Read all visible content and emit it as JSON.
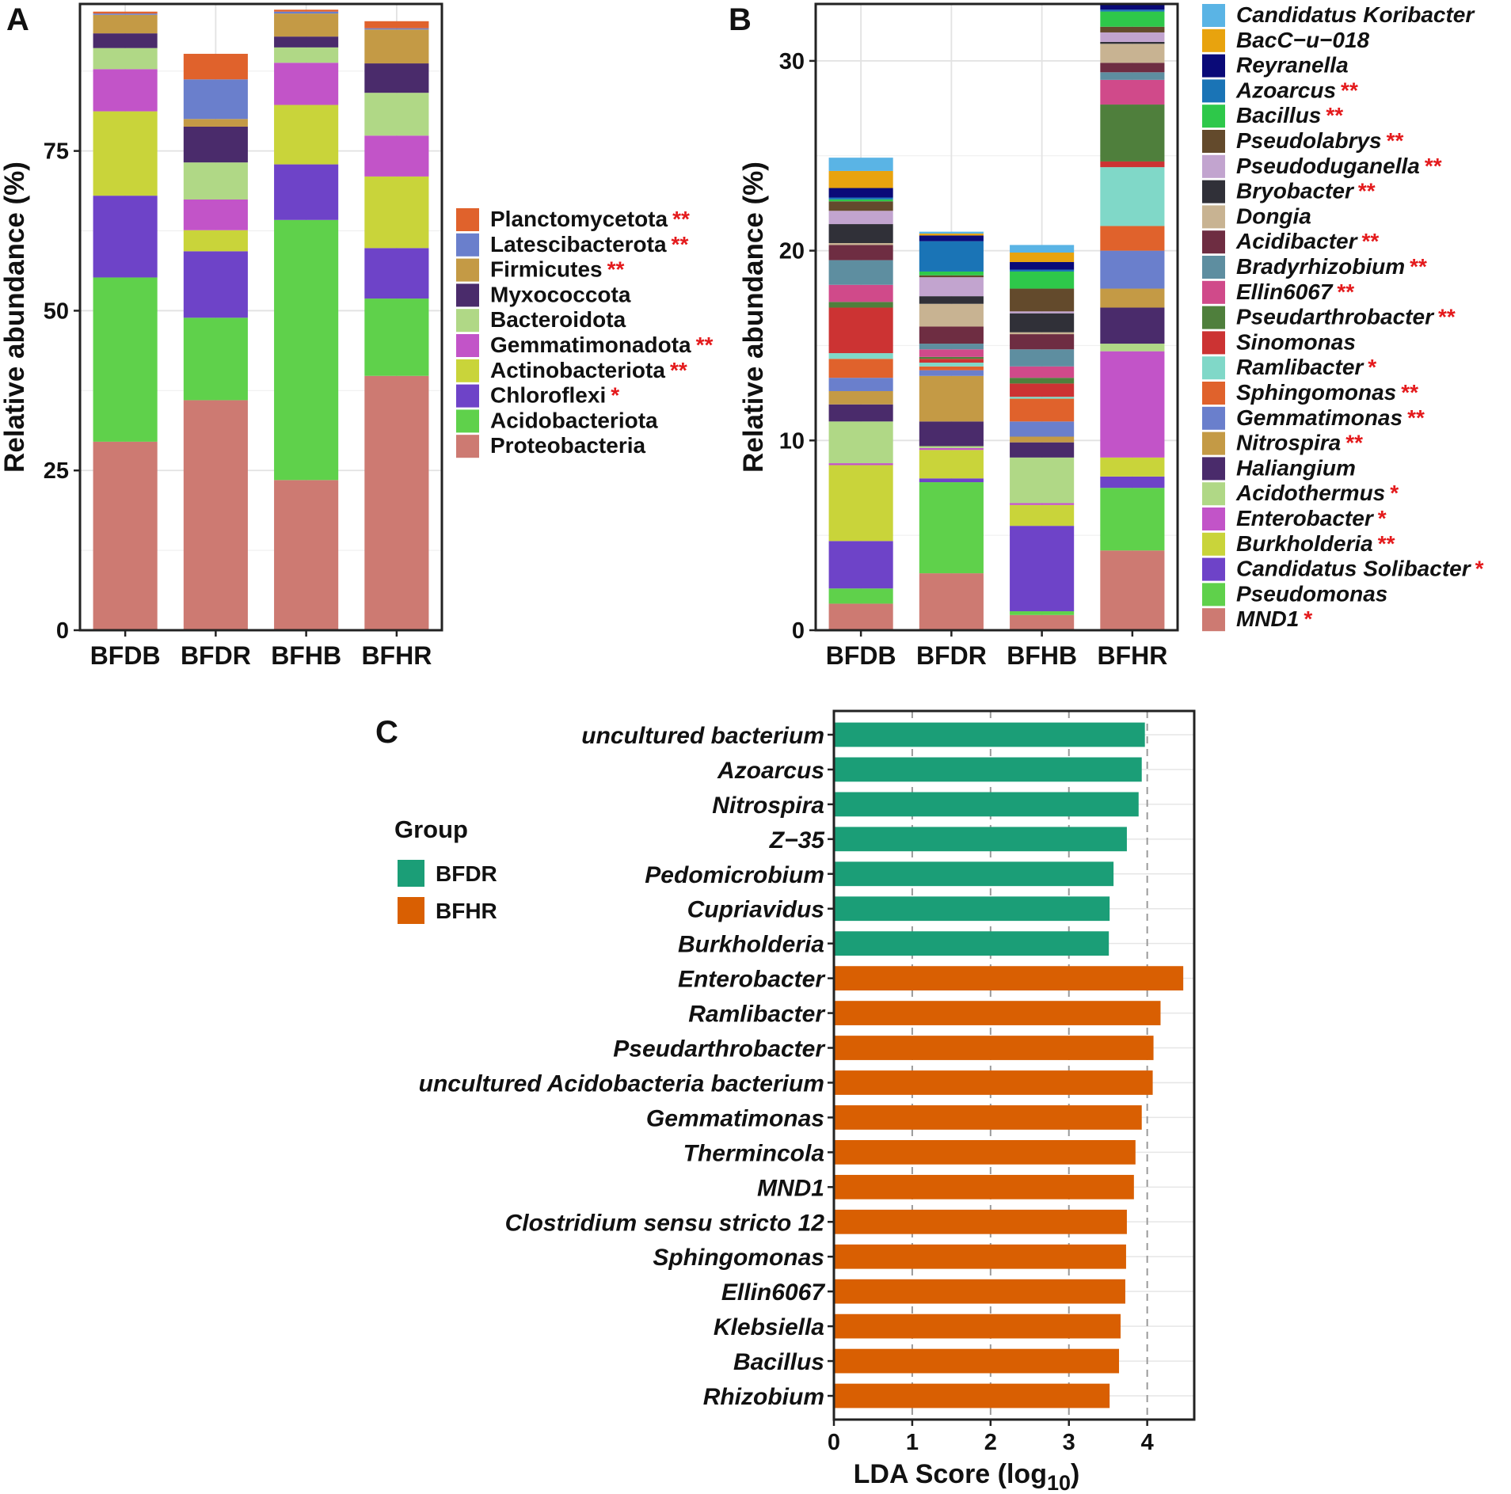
{
  "chart_data": [
    {
      "panel": "A",
      "type": "stacked-bar",
      "ylabel": "Relative abundance (%)",
      "ylim": [
        0,
        98
      ],
      "yticks": [
        0,
        25,
        50,
        75
      ],
      "categories": [
        "BFDB",
        "BFDR",
        "BFHB",
        "BFHR"
      ],
      "series": [
        {
          "name": "Proteobacteria",
          "mark": "",
          "color": "#cd7a72",
          "values": [
            29.5,
            36,
            23.5,
            39.8
          ]
        },
        {
          "name": "Acidobacteriota",
          "mark": "",
          "color": "#5fd14b",
          "values": [
            25.7,
            12.9,
            40.7,
            12.1
          ]
        },
        {
          "name": "Chloroflexi",
          "mark": "*",
          "color": "#6e43c8",
          "values": [
            12.8,
            10.4,
            8.7,
            7.9
          ]
        },
        {
          "name": "Actinobacteriota",
          "mark": "**",
          "color": "#c9d43a",
          "values": [
            13.2,
            3.3,
            9.3,
            11.2
          ]
        },
        {
          "name": "Gemmatimonadota",
          "mark": "**",
          "color": "#c254c8",
          "values": [
            6.6,
            4.8,
            6.6,
            6.4
          ]
        },
        {
          "name": "Bacteroidota",
          "mark": "",
          "color": "#b0d886",
          "values": [
            3.3,
            5.8,
            2.4,
            6.7
          ]
        },
        {
          "name": "Myxococcota",
          "mark": "",
          "color": "#4a2b6b",
          "values": [
            2.3,
            5.6,
            1.7,
            4.6
          ]
        },
        {
          "name": "Firmicutes",
          "mark": "**",
          "color": "#c49a45",
          "values": [
            2.9,
            1.2,
            3.6,
            5.3
          ]
        },
        {
          "name": "Latescibacterota",
          "mark": "**",
          "color": "#6a7fcc",
          "values": [
            0.2,
            6.2,
            0.3,
            0.2
          ]
        },
        {
          "name": "Planctomycetota",
          "mark": "**",
          "color": "#e0622c",
          "values": [
            0.3,
            4.0,
            0.3,
            1.1
          ]
        }
      ]
    },
    {
      "panel": "B",
      "type": "stacked-bar",
      "ylabel": "Relative abundance (%)",
      "ylim": [
        0,
        33
      ],
      "yticks": [
        0,
        10,
        20,
        30
      ],
      "categories": [
        "BFDB",
        "BFDR",
        "BFHB",
        "BFHR"
      ],
      "series": [
        {
          "name": "MND1",
          "mark": "*",
          "color": "#cd7a72",
          "values": [
            1.4,
            3.0,
            0.8,
            4.2
          ]
        },
        {
          "name": "Pseudomonas",
          "mark": "",
          "color": "#5fd14b",
          "values": [
            0.8,
            4.8,
            0.2,
            3.3
          ]
        },
        {
          "name": "Candidatus Solibacter",
          "mark": "*",
          "color": "#6e43c8",
          "values": [
            2.5,
            0.2,
            4.5,
            0.6
          ]
        },
        {
          "name": "Burkholderia",
          "mark": "**",
          "color": "#c9d43a",
          "values": [
            4.0,
            1.5,
            1.1,
            1.0
          ]
        },
        {
          "name": "Enterobacter",
          "mark": "*",
          "color": "#c254c8",
          "values": [
            0.1,
            0.1,
            0.1,
            5.6
          ]
        },
        {
          "name": "Acidothermus",
          "mark": "*",
          "color": "#b0d886",
          "values": [
            2.2,
            0.1,
            2.4,
            0.4
          ]
        },
        {
          "name": "Haliangium",
          "mark": "",
          "color": "#4a2b6b",
          "values": [
            0.9,
            1.3,
            0.8,
            1.9
          ]
        },
        {
          "name": "Nitrospira",
          "mark": "**",
          "color": "#c49a45",
          "values": [
            0.7,
            2.4,
            0.3,
            1.0
          ]
        },
        {
          "name": "Gemmatimonas",
          "mark": "**",
          "color": "#6a7fcc",
          "values": [
            0.7,
            0.3,
            0.8,
            2.0
          ]
        },
        {
          "name": "Sphingomonas",
          "mark": "**",
          "color": "#e0622c",
          "values": [
            1.0,
            0.2,
            1.2,
            1.3
          ]
        },
        {
          "name": "Ramlibacter",
          "mark": "*",
          "color": "#80d8c8",
          "values": [
            0.3,
            0.2,
            0.1,
            3.1
          ]
        },
        {
          "name": "Sinomonas",
          "mark": "",
          "color": "#cc3333",
          "values": [
            2.4,
            0.2,
            0.7,
            0.3
          ]
        },
        {
          "name": "Pseudarthrobacter",
          "mark": "**",
          "color": "#4f7f3c",
          "values": [
            0.3,
            0.1,
            0.3,
            3.0
          ]
        },
        {
          "name": "Ellin6067",
          "mark": "**",
          "color": "#d04a8a",
          "values": [
            0.9,
            0.4,
            0.6,
            1.3
          ]
        },
        {
          "name": "Bradyrhizobium",
          "mark": "**",
          "color": "#5e8ea0",
          "values": [
            1.3,
            0.3,
            0.9,
            0.4
          ]
        },
        {
          "name": "Acidibacter",
          "mark": "**",
          "color": "#6e2d42",
          "values": [
            0.8,
            0.9,
            0.8,
            0.5
          ]
        },
        {
          "name": "Dongia",
          "mark": "",
          "color": "#c8b392",
          "values": [
            0.1,
            1.2,
            0.1,
            1.0
          ]
        },
        {
          "name": "Bryobacter",
          "mark": "**",
          "color": "#303038",
          "values": [
            1.0,
            0.4,
            1.0,
            0.1
          ]
        },
        {
          "name": "Pseudoduganella",
          "mark": "**",
          "color": "#c2a4cf",
          "values": [
            0.7,
            1.0,
            0.1,
            0.5
          ]
        },
        {
          "name": "Pseudolabrys",
          "mark": "**",
          "color": "#634a2c",
          "values": [
            0.5,
            0.1,
            1.2,
            0.3
          ]
        },
        {
          "name": "Bacillus",
          "mark": "**",
          "color": "#2ec84a",
          "values": [
            0.1,
            0.2,
            0.9,
            0.8
          ]
        },
        {
          "name": "Azoarcus",
          "mark": "**",
          "color": "#1a74b6",
          "values": [
            0.1,
            1.6,
            0.1,
            0.1
          ]
        },
        {
          "name": "Reyranella",
          "mark": "",
          "color": "#0a0a78",
          "values": [
            0.5,
            0.3,
            0.4,
            0.3
          ]
        },
        {
          "name": "BacC−u−018",
          "mark": "",
          "color": "#e8a30e",
          "values": [
            0.9,
            0.1,
            0.5,
            0.1
          ]
        },
        {
          "name": "Candidatus Koribacter",
          "mark": "",
          "color": "#5ab4e5",
          "values": [
            0.7,
            0.1,
            0.4,
            0.3
          ]
        }
      ]
    },
    {
      "panel": "C",
      "type": "bar",
      "orientation": "horizontal",
      "xlabel": "LDA Score (log10)",
      "xlim": [
        0,
        4.6
      ],
      "xticks": [
        0,
        1,
        2,
        3,
        4
      ],
      "legend_title": "Group",
      "groups": [
        {
          "name": "BFDR",
          "color": "#1b9e77"
        },
        {
          "name": "BFHR",
          "color": "#d95f02"
        }
      ],
      "bars": [
        {
          "label": "uncultured bacterium",
          "group": "BFDR",
          "value": 3.97
        },
        {
          "label": "Azoarcus",
          "group": "BFDR",
          "value": 3.93
        },
        {
          "label": "Nitrospira",
          "group": "BFDR",
          "value": 3.89
        },
        {
          "label": "Z−35",
          "group": "BFDR",
          "value": 3.74
        },
        {
          "label": "Pedomicrobium",
          "group": "BFDR",
          "value": 3.57
        },
        {
          "label": "Cupriavidus",
          "group": "BFDR",
          "value": 3.52
        },
        {
          "label": "Burkholderia",
          "group": "BFDR",
          "value": 3.51
        },
        {
          "label": "Enterobacter",
          "group": "BFHR",
          "value": 4.46
        },
        {
          "label": "Ramlibacter",
          "group": "BFHR",
          "value": 4.17
        },
        {
          "label": "Pseudarthrobacter",
          "group": "BFHR",
          "value": 4.08
        },
        {
          "label": "uncultured Acidobacteria bacterium",
          "group": "BFHR",
          "value": 4.07
        },
        {
          "label": "Gemmatimonas",
          "group": "BFHR",
          "value": 3.93
        },
        {
          "label": "Thermincola",
          "group": "BFHR",
          "value": 3.85
        },
        {
          "label": "MND1",
          "group": "BFHR",
          "value": 3.83
        },
        {
          "label": "Clostridium sensu stricto 12",
          "group": "BFHR",
          "value": 3.74
        },
        {
          "label": "Sphingomonas",
          "group": "BFHR",
          "value": 3.73
        },
        {
          "label": "Ellin6067",
          "group": "BFHR",
          "value": 3.72
        },
        {
          "label": "Klebsiella",
          "group": "BFHR",
          "value": 3.66
        },
        {
          "label": "Bacillus",
          "group": "BFHR",
          "value": 3.64
        },
        {
          "label": "Rhizobium",
          "group": "BFHR",
          "value": 3.52
        }
      ]
    }
  ],
  "panel_labels": {
    "a": "A",
    "b": "B",
    "c": "C"
  }
}
